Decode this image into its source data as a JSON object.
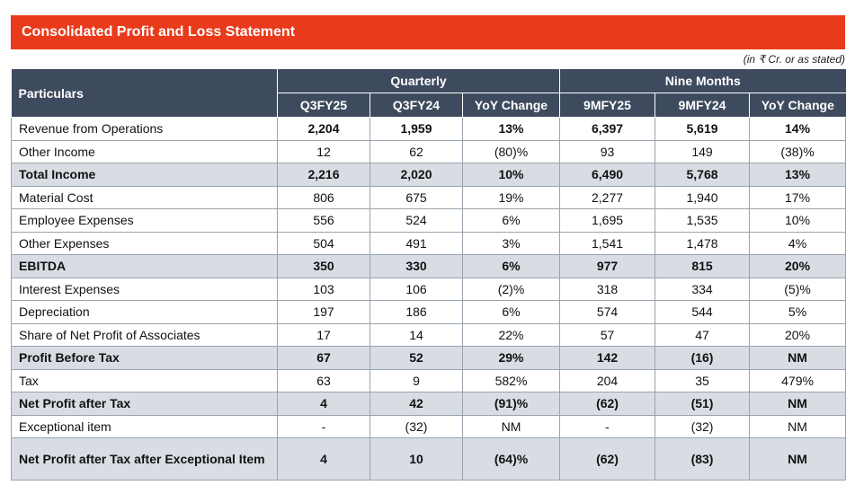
{
  "title": "Consolidated Profit and Loss Statement",
  "note": "(in ₹ Cr. or as stated)",
  "table": {
    "header": {
      "particulars": "Particulars",
      "quarterly": "Quarterly",
      "nine_months": "Nine Months",
      "columns": [
        "Q3FY25",
        "Q3FY24",
        "YoY Change",
        "9MFY25",
        "9MFY24",
        "YoY Change"
      ]
    },
    "rows": [
      [
        "Revenue from Operations",
        "2,204",
        "1,959",
        "13%",
        "6,397",
        "5,619",
        "14%"
      ],
      [
        "Other Income",
        "12",
        "62",
        "(80)%",
        "93",
        "149",
        "(38)%"
      ],
      [
        "Total Income",
        "2,216",
        "2,020",
        "10%",
        "6,490",
        "5,768",
        "13%"
      ],
      [
        "Material Cost",
        "806",
        "675",
        "19%",
        "2,277",
        "1,940",
        "17%"
      ],
      [
        "Employee Expenses",
        "556",
        "524",
        "6%",
        "1,695",
        "1,535",
        "10%"
      ],
      [
        "Other Expenses",
        "504",
        "491",
        "3%",
        "1,541",
        "1,478",
        "4%"
      ],
      [
        "EBITDA",
        "350",
        "330",
        "6%",
        "977",
        "815",
        "20%"
      ],
      [
        "Interest Expenses",
        "103",
        "106",
        "(2)%",
        "318",
        "334",
        "(5)%"
      ],
      [
        "Depreciation",
        "197",
        "186",
        "6%",
        "574",
        "544",
        "5%"
      ],
      [
        "Share of Net Profit of Associates",
        "17",
        "14",
        "22%",
        "57",
        "47",
        "20%"
      ],
      [
        "Profit Before Tax",
        "67",
        "52",
        "29%",
        "142",
        "(16)",
        "NM"
      ],
      [
        "Tax",
        "63",
        "9",
        "582%",
        "204",
        "35",
        "479%"
      ],
      [
        "Net Profit after Tax",
        "4",
        "42",
        "(91)%",
        "(62)",
        "(51)",
        "NM"
      ],
      [
        "Exceptional item",
        "-",
        "(32)",
        "NM",
        "-",
        "(32)",
        "NM"
      ],
      [
        "Net Profit after Tax after Exceptional Item",
        "4",
        "10",
        "(64)%",
        "(62)",
        "(83)",
        "NM"
      ]
    ]
  }
}
